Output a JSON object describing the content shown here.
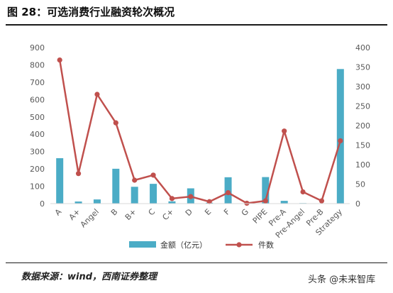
{
  "title": "图 28：可选消费行业融资轮次概况",
  "source": "数据来源：wind，西南证券整理",
  "watermark": "头条 @未来智库",
  "colors": {
    "bar": "#4bacc6",
    "line": "#c0504d",
    "axis": "#d9d9d9",
    "text": "#595959"
  },
  "chart_data": {
    "type": "bar+line",
    "categories": [
      "A",
      "A+",
      "Angel",
      "B",
      "B+",
      "C",
      "C+",
      "D",
      "E",
      "F",
      "G",
      "PIPE",
      "Pre-A",
      "Pre-Angel",
      "Pre-B",
      "Strategy"
    ],
    "series": [
      {
        "name": "金额（亿元）",
        "type": "bar",
        "axis": "left",
        "values": [
          262,
          12,
          24,
          201,
          97,
          114,
          13,
          88,
          5,
          152,
          2,
          153,
          16,
          3,
          2,
          776
        ]
      },
      {
        "name": "件数",
        "type": "line",
        "axis": "right",
        "values": [
          368,
          77,
          280,
          207,
          60,
          73,
          13,
          18,
          5,
          28,
          1,
          7,
          186,
          30,
          7,
          161
        ]
      }
    ],
    "ylim_left": [
      0,
      900
    ],
    "yticks_left": [
      0,
      100,
      200,
      300,
      400,
      500,
      600,
      700,
      800,
      900
    ],
    "ylim_right": [
      0,
      400
    ],
    "yticks_right": [
      0,
      50,
      100,
      150,
      200,
      250,
      300,
      350,
      400
    ],
    "legend_position": "bottom",
    "grid": false
  }
}
